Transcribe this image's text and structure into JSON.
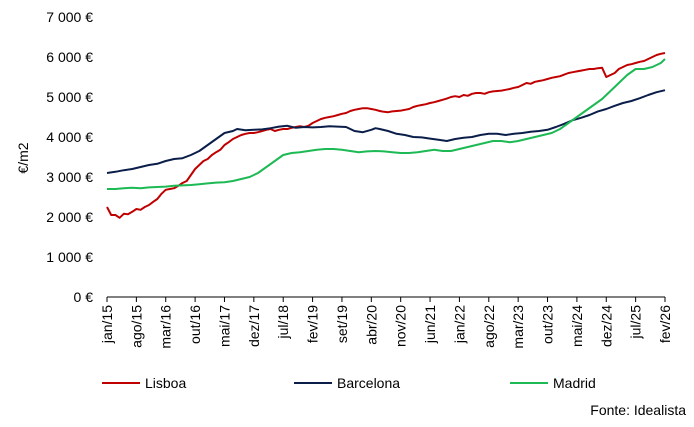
{
  "chart_data": {
    "type": "line",
    "title": "",
    "xlabel": "",
    "ylabel": "€/m2",
    "ylim": [
      0,
      7000
    ],
    "y_ticks": [
      0,
      1000,
      2000,
      3000,
      4000,
      5000,
      6000,
      7000
    ],
    "y_tick_labels": [
      "0 €",
      "1 000 €",
      "2 000 €",
      "3 000 €",
      "4 000 €",
      "5 000 €",
      "6 000 €",
      "7 000 €"
    ],
    "x_tick_labels": [
      {
        "label": "jan/15",
        "x": 0
      },
      {
        "label": "ago/15",
        "x": 7
      },
      {
        "label": "mar/16",
        "x": 14
      },
      {
        "label": "out/16",
        "x": 21
      },
      {
        "label": "mai/17",
        "x": 28
      },
      {
        "label": "dez/17",
        "x": 35
      },
      {
        "label": "jul/18",
        "x": 42
      },
      {
        "label": "fev/19",
        "x": 49
      },
      {
        "label": "set/19",
        "x": 56
      },
      {
        "label": "abr/20",
        "x": 63
      },
      {
        "label": "nov/20",
        "x": 70
      },
      {
        "label": "jun/21",
        "x": 77
      },
      {
        "label": "jan/22",
        "x": 84
      },
      {
        "label": "ago/22",
        "x": 91
      },
      {
        "label": "mar/23",
        "x": 98
      },
      {
        "label": "out/23",
        "x": 105
      },
      {
        "label": "mai/24",
        "x": 112
      },
      {
        "label": "dez/24",
        "x": 119
      },
      {
        "label": "jul/25",
        "x": 126
      },
      {
        "label": "fev/26",
        "x": 133
      }
    ],
    "x_range": [
      0,
      133
    ],
    "legend_position": "bottom",
    "grid": false,
    "series": [
      {
        "name": "Lisboa",
        "color": "#C00000",
        "points": [
          [
            0,
            2250
          ],
          [
            1,
            2050
          ],
          [
            2,
            2050
          ],
          [
            3,
            1980
          ],
          [
            4,
            2080
          ],
          [
            5,
            2070
          ],
          [
            6,
            2130
          ],
          [
            7,
            2200
          ],
          [
            8,
            2180
          ],
          [
            9,
            2250
          ],
          [
            10,
            2300
          ],
          [
            11,
            2380
          ],
          [
            12,
            2450
          ],
          [
            13,
            2580
          ],
          [
            14,
            2680
          ],
          [
            15,
            2700
          ],
          [
            16,
            2720
          ],
          [
            17,
            2780
          ],
          [
            18,
            2850
          ],
          [
            19,
            2900
          ],
          [
            20,
            3050
          ],
          [
            21,
            3200
          ],
          [
            22,
            3300
          ],
          [
            23,
            3400
          ],
          [
            24,
            3450
          ],
          [
            25,
            3550
          ],
          [
            26,
            3620
          ],
          [
            27,
            3680
          ],
          [
            28,
            3800
          ],
          [
            29,
            3870
          ],
          [
            30,
            3950
          ],
          [
            31,
            4000
          ],
          [
            32,
            4050
          ],
          [
            33,
            4080
          ],
          [
            34,
            4100
          ],
          [
            35,
            4100
          ],
          [
            36,
            4120
          ],
          [
            37,
            4150
          ],
          [
            38,
            4180
          ],
          [
            39,
            4200
          ],
          [
            40,
            4150
          ],
          [
            41,
            4180
          ],
          [
            42,
            4200
          ],
          [
            43,
            4200
          ],
          [
            44,
            4230
          ],
          [
            45,
            4250
          ],
          [
            46,
            4270
          ],
          [
            47,
            4250
          ],
          [
            48,
            4280
          ],
          [
            49,
            4350
          ],
          [
            50,
            4400
          ],
          [
            51,
            4450
          ],
          [
            52,
            4480
          ],
          [
            53,
            4500
          ],
          [
            54,
            4520
          ],
          [
            55,
            4550
          ],
          [
            56,
            4580
          ],
          [
            57,
            4600
          ],
          [
            58,
            4650
          ],
          [
            59,
            4680
          ],
          [
            60,
            4700
          ],
          [
            61,
            4720
          ],
          [
            62,
            4720
          ],
          [
            63,
            4700
          ],
          [
            64,
            4680
          ],
          [
            65,
            4650
          ],
          [
            66,
            4630
          ],
          [
            67,
            4620
          ],
          [
            68,
            4640
          ],
          [
            69,
            4650
          ],
          [
            70,
            4660
          ],
          [
            71,
            4680
          ],
          [
            72,
            4700
          ],
          [
            73,
            4750
          ],
          [
            74,
            4780
          ],
          [
            75,
            4800
          ],
          [
            76,
            4820
          ],
          [
            77,
            4850
          ],
          [
            78,
            4870
          ],
          [
            79,
            4900
          ],
          [
            80,
            4930
          ],
          [
            81,
            4960
          ],
          [
            82,
            5000
          ],
          [
            83,
            5020
          ],
          [
            84,
            5000
          ],
          [
            85,
            5050
          ],
          [
            86,
            5030
          ],
          [
            87,
            5080
          ],
          [
            88,
            5100
          ],
          [
            89,
            5100
          ],
          [
            90,
            5080
          ],
          [
            91,
            5120
          ],
          [
            92,
            5140
          ],
          [
            93,
            5150
          ],
          [
            94,
            5160
          ],
          [
            95,
            5180
          ],
          [
            96,
            5200
          ],
          [
            97,
            5230
          ],
          [
            98,
            5250
          ],
          [
            99,
            5300
          ],
          [
            100,
            5350
          ],
          [
            101,
            5330
          ],
          [
            102,
            5380
          ],
          [
            103,
            5400
          ],
          [
            104,
            5420
          ],
          [
            105,
            5450
          ],
          [
            106,
            5480
          ],
          [
            107,
            5500
          ],
          [
            108,
            5520
          ],
          [
            109,
            5560
          ],
          [
            110,
            5600
          ],
          [
            111,
            5620
          ],
          [
            112,
            5640
          ],
          [
            113,
            5660
          ],
          [
            114,
            5680
          ],
          [
            115,
            5700
          ],
          [
            116,
            5700
          ],
          [
            117,
            5720
          ],
          [
            118,
            5730
          ],
          [
            119,
            5500
          ],
          [
            120,
            5550
          ],
          [
            121,
            5600
          ],
          [
            122,
            5700
          ],
          [
            123,
            5750
          ],
          [
            124,
            5800
          ],
          [
            125,
            5820
          ],
          [
            126,
            5850
          ],
          [
            127,
            5880
          ],
          [
            128,
            5900
          ],
          [
            129,
            5950
          ],
          [
            130,
            6000
          ],
          [
            131,
            6050
          ],
          [
            132,
            6080
          ],
          [
            133,
            6100
          ]
        ]
      },
      {
        "name": "Barcelona",
        "color": "#0B1E4A",
        "points": [
          [
            0,
            3100
          ],
          [
            2,
            3130
          ],
          [
            4,
            3170
          ],
          [
            6,
            3200
          ],
          [
            8,
            3250
          ],
          [
            10,
            3300
          ],
          [
            12,
            3330
          ],
          [
            14,
            3400
          ],
          [
            16,
            3450
          ],
          [
            18,
            3470
          ],
          [
            20,
            3550
          ],
          [
            22,
            3650
          ],
          [
            24,
            3800
          ],
          [
            26,
            3950
          ],
          [
            28,
            4100
          ],
          [
            30,
            4150
          ],
          [
            31,
            4200
          ],
          [
            33,
            4170
          ],
          [
            35,
            4180
          ],
          [
            37,
            4190
          ],
          [
            39,
            4220
          ],
          [
            41,
            4260
          ],
          [
            43,
            4280
          ],
          [
            45,
            4230
          ],
          [
            47,
            4250
          ],
          [
            49,
            4240
          ],
          [
            51,
            4250
          ],
          [
            53,
            4270
          ],
          [
            55,
            4260
          ],
          [
            57,
            4250
          ],
          [
            59,
            4150
          ],
          [
            61,
            4120
          ],
          [
            63,
            4180
          ],
          [
            64,
            4220
          ],
          [
            65,
            4200
          ],
          [
            67,
            4150
          ],
          [
            69,
            4080
          ],
          [
            71,
            4050
          ],
          [
            73,
            4000
          ],
          [
            75,
            3990
          ],
          [
            77,
            3960
          ],
          [
            79,
            3930
          ],
          [
            81,
            3900
          ],
          [
            83,
            3950
          ],
          [
            85,
            3980
          ],
          [
            87,
            4000
          ],
          [
            89,
            4050
          ],
          [
            91,
            4080
          ],
          [
            93,
            4080
          ],
          [
            95,
            4050
          ],
          [
            97,
            4080
          ],
          [
            99,
            4100
          ],
          [
            101,
            4130
          ],
          [
            103,
            4150
          ],
          [
            105,
            4180
          ],
          [
            107,
            4250
          ],
          [
            109,
            4330
          ],
          [
            111,
            4420
          ],
          [
            113,
            4480
          ],
          [
            115,
            4550
          ],
          [
            117,
            4640
          ],
          [
            119,
            4700
          ],
          [
            121,
            4780
          ],
          [
            123,
            4850
          ],
          [
            125,
            4900
          ],
          [
            127,
            4970
          ],
          [
            129,
            5050
          ],
          [
            131,
            5120
          ],
          [
            133,
            5170
          ]
        ]
      },
      {
        "name": "Madrid",
        "color": "#1DB954",
        "points": [
          [
            0,
            2700
          ],
          [
            2,
            2700
          ],
          [
            4,
            2720
          ],
          [
            6,
            2730
          ],
          [
            8,
            2720
          ],
          [
            10,
            2740
          ],
          [
            12,
            2750
          ],
          [
            14,
            2760
          ],
          [
            16,
            2780
          ],
          [
            18,
            2790
          ],
          [
            20,
            2800
          ],
          [
            22,
            2820
          ],
          [
            24,
            2840
          ],
          [
            26,
            2860
          ],
          [
            28,
            2870
          ],
          [
            30,
            2900
          ],
          [
            32,
            2950
          ],
          [
            34,
            3000
          ],
          [
            36,
            3100
          ],
          [
            38,
            3250
          ],
          [
            40,
            3400
          ],
          [
            42,
            3550
          ],
          [
            44,
            3600
          ],
          [
            46,
            3620
          ],
          [
            48,
            3650
          ],
          [
            50,
            3680
          ],
          [
            52,
            3700
          ],
          [
            54,
            3700
          ],
          [
            56,
            3680
          ],
          [
            58,
            3650
          ],
          [
            60,
            3620
          ],
          [
            62,
            3640
          ],
          [
            64,
            3650
          ],
          [
            66,
            3640
          ],
          [
            68,
            3620
          ],
          [
            70,
            3600
          ],
          [
            72,
            3600
          ],
          [
            74,
            3620
          ],
          [
            76,
            3650
          ],
          [
            78,
            3680
          ],
          [
            80,
            3650
          ],
          [
            82,
            3650
          ],
          [
            84,
            3700
          ],
          [
            86,
            3750
          ],
          [
            88,
            3800
          ],
          [
            90,
            3850
          ],
          [
            92,
            3900
          ],
          [
            94,
            3900
          ],
          [
            96,
            3870
          ],
          [
            98,
            3900
          ],
          [
            100,
            3950
          ],
          [
            102,
            4000
          ],
          [
            104,
            4050
          ],
          [
            106,
            4100
          ],
          [
            108,
            4200
          ],
          [
            110,
            4350
          ],
          [
            112,
            4500
          ],
          [
            114,
            4650
          ],
          [
            116,
            4800
          ],
          [
            118,
            4950
          ],
          [
            120,
            5150
          ],
          [
            122,
            5350
          ],
          [
            124,
            5550
          ],
          [
            126,
            5700
          ],
          [
            128,
            5700
          ],
          [
            130,
            5750
          ],
          [
            132,
            5850
          ],
          [
            133,
            5950
          ]
        ]
      }
    ]
  },
  "source": "Fonte: Idealista"
}
